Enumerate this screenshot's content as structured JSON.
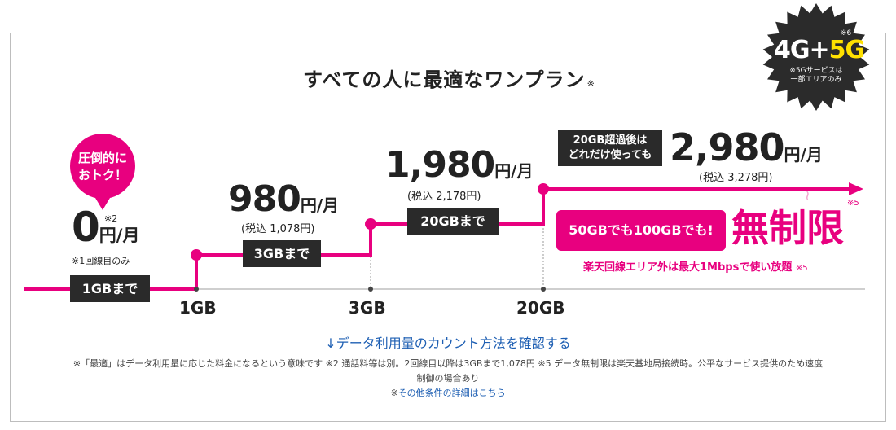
{
  "title": "すべての人に最適なワンプラン",
  "title_note": "※",
  "badge": {
    "note_num": "※6",
    "g4": "4G+",
    "g5": "5G",
    "sub1": "※5Gサービスは",
    "sub2": "一部エリアのみ"
  },
  "bubble": {
    "line1": "圧倒的に",
    "line2": "おトク！"
  },
  "tiers": [
    {
      "price": "0",
      "note": "※2",
      "unit": "円/月",
      "subnote": "※1回線目のみ",
      "label": "1GBまで"
    },
    {
      "price": "980",
      "unit": "円/月",
      "tax": "(税込 1,078円)",
      "label": "3GBまで"
    },
    {
      "price": "1,980",
      "unit": "円/月",
      "tax": "(税込 2,178円)",
      "label": "20GBまで"
    },
    {
      "price": "2,980",
      "unit": "円/月",
      "tax": "(税込 3,278円)",
      "label1": "20GB超過後は",
      "label2": "どれだけ使っても"
    }
  ],
  "unlimited": {
    "note": "※5",
    "box": "50GBでも100GBでも!",
    "big": "無制限",
    "area": "楽天回線エリア外は最大1Mbpsで使い放題",
    "area_note": "※5"
  },
  "axis": [
    "1GB",
    "3GB",
    "20GB"
  ],
  "count_link": "↓データ利用量のカウント方法を確認する",
  "footnote_line1": "※「最適」はデータ利用量に応じた料金になるという意味です ※2 通話料等は別。2回線目以降は3GBまで1,078円 ※5 データ無制限は楽天基地局接続時。公平なサービス提供のため速度",
  "footnote_line2": "制御の場合あり",
  "other_prefix": "※",
  "other_link": "その他条件の詳細はこちら",
  "colors": {
    "accent": "#e8007f",
    "dark": "#2a2a2a",
    "link": "#1e5fb3"
  }
}
